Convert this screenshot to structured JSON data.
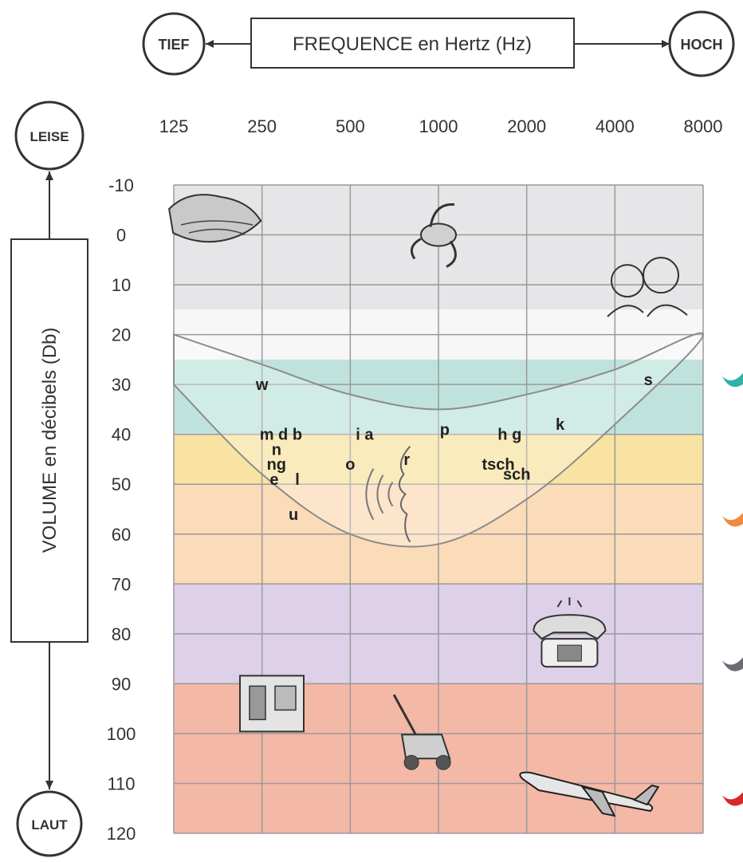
{
  "chart_data": {
    "type": "heatmap",
    "x_axis": {
      "label": "FREQUENCE en Hertz (Hz)",
      "low_label": "TIEF",
      "high_label": "HOCH",
      "ticks": [
        "125",
        "250",
        "500",
        "1000",
        "2000",
        "4000",
        "8000"
      ],
      "scale": "log2"
    },
    "y_axis": {
      "label": "VOLUME en décibels (Db)",
      "low_label": "LEISE",
      "high_label": "LAUT",
      "ticks": [
        -10,
        0,
        10,
        20,
        30,
        40,
        50,
        60,
        70,
        80,
        90,
        100,
        110,
        120
      ],
      "range": [
        -10,
        120
      ],
      "inverted": true
    },
    "bands": [
      {
        "from": -10,
        "to": 15,
        "color": "#e6e6e8"
      },
      {
        "from": 15,
        "to": 25,
        "color": "#f7f7f7"
      },
      {
        "from": 25,
        "to": 40,
        "color": "#bfe3dc"
      },
      {
        "from": 40,
        "to": 50,
        "color": "#f9e3a3"
      },
      {
        "from": 50,
        "to": 70,
        "color": "#fbdcb8"
      },
      {
        "from": 70,
        "to": 90,
        "color": "#ddd0e8"
      },
      {
        "from": 90,
        "to": 120,
        "color": "#f4b8a6"
      }
    ],
    "grid": true,
    "speech_banana": {
      "upper": [
        [
          125,
          20
        ],
        [
          250,
          26
        ],
        [
          500,
          32
        ],
        [
          1000,
          35
        ],
        [
          2000,
          32
        ],
        [
          4000,
          27
        ],
        [
          8000,
          20
        ]
      ],
      "lower": [
        [
          8000,
          20
        ],
        [
          4000,
          38
        ],
        [
          2000,
          53
        ],
        [
          1000,
          62
        ],
        [
          500,
          60
        ],
        [
          250,
          48
        ],
        [
          125,
          30
        ]
      ]
    },
    "phonemes": [
      {
        "text": "w",
        "freq": 250,
        "db": 30
      },
      {
        "text": "s",
        "freq": 5200,
        "db": 29
      },
      {
        "text": "m d b",
        "freq": 290,
        "db": 40
      },
      {
        "text": "n",
        "freq": 280,
        "db": 43
      },
      {
        "text": "ng",
        "freq": 280,
        "db": 46
      },
      {
        "text": "e",
        "freq": 275,
        "db": 49
      },
      {
        "text": "l",
        "freq": 330,
        "db": 49
      },
      {
        "text": "u",
        "freq": 320,
        "db": 56
      },
      {
        "text": "i a",
        "freq": 560,
        "db": 40
      },
      {
        "text": "o",
        "freq": 500,
        "db": 46
      },
      {
        "text": "r",
        "freq": 780,
        "db": 45
      },
      {
        "text": "p",
        "freq": 1050,
        "db": 39
      },
      {
        "text": "h g",
        "freq": 1750,
        "db": 40
      },
      {
        "text": "k",
        "freq": 2600,
        "db": 38
      },
      {
        "text": "tsch",
        "freq": 1600,
        "db": 46
      },
      {
        "text": "sch",
        "freq": 1850,
        "db": 48
      }
    ],
    "icons": [
      {
        "name": "leaves-icon",
        "freq": 170,
        "db": -2
      },
      {
        "name": "bird-icon",
        "freq": 1000,
        "db": 0
      },
      {
        "name": "whispering-people-icon",
        "freq": 5000,
        "db": 10
      },
      {
        "name": "speaking-face-icon",
        "freq": 800,
        "db": 52
      },
      {
        "name": "telephone-icon",
        "freq": 2800,
        "db": 81
      },
      {
        "name": "machine-icon",
        "freq": 270,
        "db": 94
      },
      {
        "name": "lawnmower-icon",
        "freq": 850,
        "db": 101
      },
      {
        "name": "airplane-icon",
        "freq": 3200,
        "db": 112
      }
    ],
    "side_markers": [
      {
        "db": 29,
        "color": "#2fb3a8"
      },
      {
        "db": 57,
        "color": "#f08a3c"
      },
      {
        "db": 86,
        "color": "#6b6b73"
      },
      {
        "db": 113,
        "color": "#d8282a"
      }
    ]
  }
}
